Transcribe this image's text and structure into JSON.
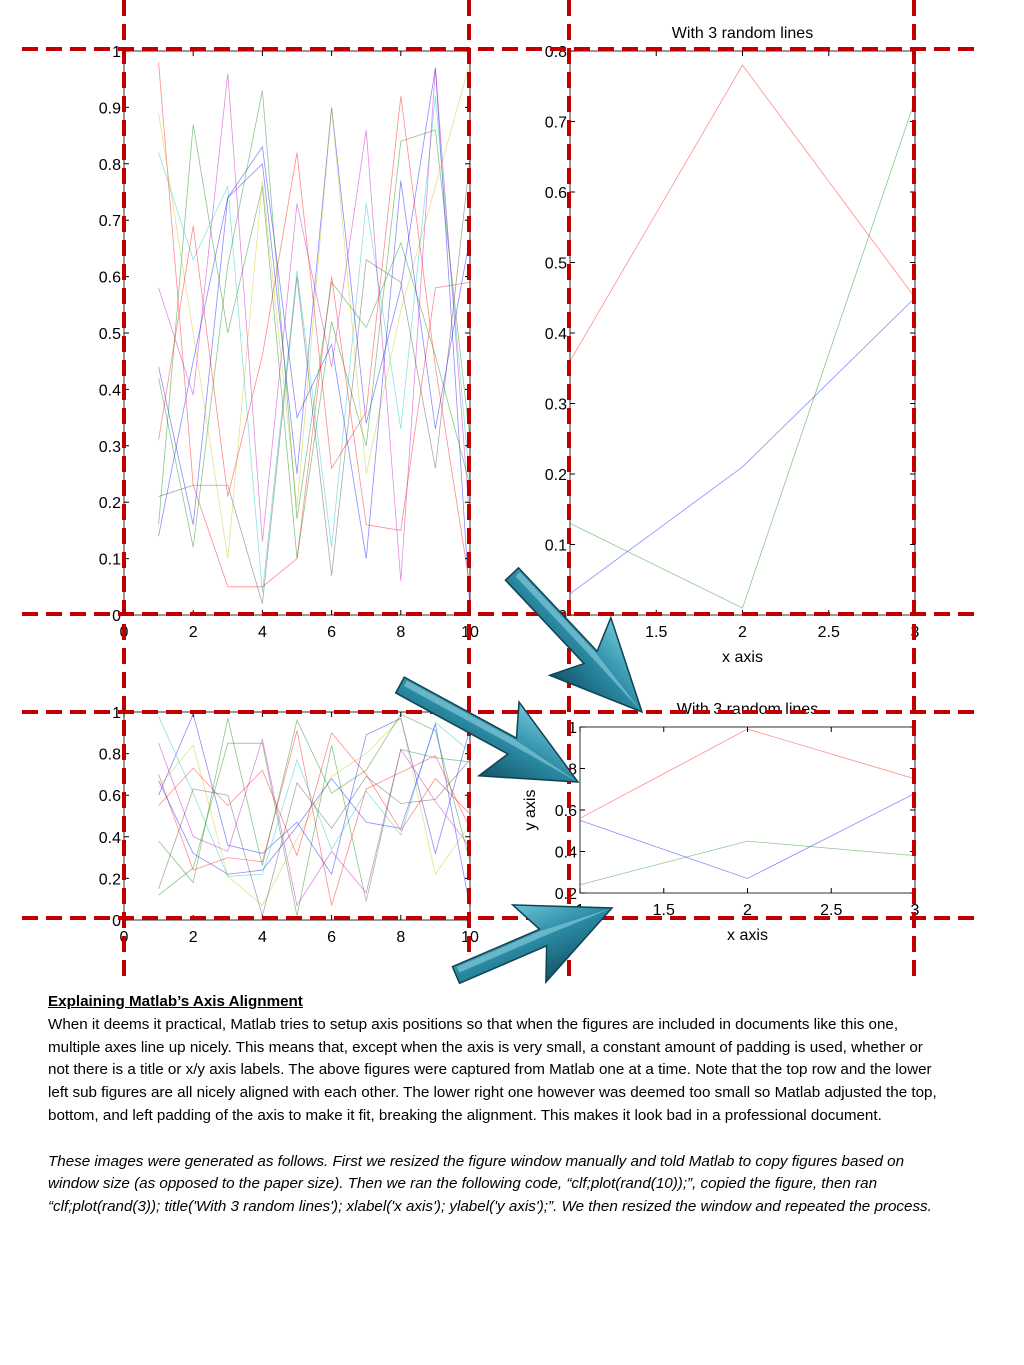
{
  "chart_data": [
    {
      "type": "line",
      "x": [
        1,
        2,
        3,
        4,
        5,
        6,
        7,
        8,
        9,
        10
      ],
      "xlim": [
        0,
        10
      ],
      "xticks": [
        0,
        2,
        4,
        6,
        8,
        10
      ],
      "ylim": [
        0,
        1
      ],
      "yticks": [
        0,
        0.1,
        0.2,
        0.3,
        0.4,
        0.5,
        0.6,
        0.7,
        0.8,
        0.9,
        1
      ],
      "series": [
        {
          "color": "#0000ff",
          "values": [
            0.44,
            0.16,
            0.74,
            0.8,
            0.25,
            0.9,
            0.34,
            0.58,
            0.97,
            0.01
          ]
        },
        {
          "color": "#008000",
          "values": [
            0.16,
            0.87,
            0.5,
            0.76,
            0.1,
            0.52,
            0.3,
            0.84,
            0.86,
            0.31
          ]
        },
        {
          "color": "#ff0000",
          "values": [
            0.98,
            0.23,
            0.05,
            0.05,
            0.1,
            0.6,
            0.16,
            0.15,
            0.58,
            0.59
          ]
        },
        {
          "color": "#00bfbf",
          "values": [
            0.82,
            0.63,
            0.76,
            0.04,
            0.61,
            0.12,
            0.73,
            0.33,
            0.92,
            0.23
          ]
        },
        {
          "color": "#bf00bf",
          "values": [
            0.58,
            0.39,
            0.96,
            0.13,
            0.73,
            0.44,
            0.86,
            0.06,
            0.97,
            0.16
          ]
        },
        {
          "color": "#bfbf00",
          "values": [
            0.89,
            0.5,
            0.1,
            0.77,
            0.19,
            0.9,
            0.25,
            0.54,
            0.76,
            0.98
          ]
        },
        {
          "color": "#404040",
          "values": [
            0.21,
            0.23,
            0.23,
            0.02,
            0.6,
            0.07,
            0.63,
            0.59,
            0.26,
            0.81
          ]
        },
        {
          "color": "#0000ff",
          "values": [
            0.14,
            0.45,
            0.74,
            0.83,
            0.35,
            0.48,
            0.1,
            0.77,
            0.33,
            0.67
          ]
        },
        {
          "color": "#008000",
          "values": [
            0.42,
            0.12,
            0.62,
            0.93,
            0.17,
            0.59,
            0.51,
            0.66,
            0.46,
            0.23
          ]
        },
        {
          "color": "#ff0000",
          "values": [
            0.31,
            0.69,
            0.21,
            0.46,
            0.82,
            0.26,
            0.36,
            0.92,
            0.44,
            0.05
          ]
        }
      ]
    },
    {
      "type": "line",
      "title": "With 3 random lines",
      "x_label": "x axis",
      "x": [
        1,
        2,
        3
      ],
      "xlim": [
        1,
        3
      ],
      "xticks": [
        1,
        1.5,
        2,
        2.5,
        3
      ],
      "ylim": [
        0,
        0.8
      ],
      "yticks": [
        0,
        0.1,
        0.2,
        0.3,
        0.4,
        0.5,
        0.6,
        0.7,
        0.8
      ],
      "series": [
        {
          "color": "#0000ff",
          "values": [
            0.03,
            0.21,
            0.45
          ]
        },
        {
          "color": "#008000",
          "values": [
            0.13,
            0.01,
            0.73
          ]
        },
        {
          "color": "#ff0000",
          "values": [
            0.36,
            0.78,
            0.45
          ]
        }
      ]
    },
    {
      "type": "line",
      "x": [
        1,
        2,
        3,
        4,
        5,
        6,
        7,
        8,
        9,
        10
      ],
      "xlim": [
        0,
        10
      ],
      "xticks": [
        0,
        2,
        4,
        6,
        8,
        10
      ],
      "ylim": [
        0,
        1
      ],
      "yticks": [
        0,
        0.2,
        0.4,
        0.6,
        0.8,
        1
      ],
      "series": [
        {
          "color": "#0000ff",
          "values": [
            0.6,
            0.99,
            0.36,
            0.32,
            0.47,
            0.22,
            0.89,
            0.97,
            0.32,
            0.92
          ]
        },
        {
          "color": "#008000",
          "values": [
            0.12,
            0.25,
            0.85,
            0.85,
            0.02,
            0.84,
            0.09,
            0.82,
            0.78,
            0.76
          ]
        },
        {
          "color": "#ff0000",
          "values": [
            0.7,
            0.24,
            0.3,
            0.28,
            0.91,
            0.07,
            0.63,
            0.71,
            0.79,
            0.44
          ]
        },
        {
          "color": "#00bfbf",
          "values": [
            0.98,
            0.61,
            0.21,
            0.22,
            0.77,
            0.34,
            0.62,
            0.41,
            0.95,
            0.81
          ]
        },
        {
          "color": "#bf00bf",
          "values": [
            0.85,
            0.4,
            0.33,
            0.87,
            0.07,
            0.33,
            0.13,
            0.82,
            0.57,
            0.35
          ]
        },
        {
          "color": "#bfbf00",
          "values": [
            0.64,
            0.84,
            0.21,
            0.07,
            0.39,
            0.69,
            0.8,
            0.97,
            0.22,
            0.46
          ]
        },
        {
          "color": "#404040",
          "values": [
            0.15,
            0.63,
            0.6,
            0.02,
            0.66,
            0.44,
            0.69,
            0.56,
            0.58,
            0.77
          ]
        },
        {
          "color": "#0000ff",
          "values": [
            0.67,
            0.32,
            0.22,
            0.24,
            0.45,
            0.68,
            0.47,
            0.44,
            0.94,
            0.06
          ]
        },
        {
          "color": "#008000",
          "values": [
            0.38,
            0.18,
            0.97,
            0.26,
            0.96,
            0.61,
            0.72,
            0.99,
            0.91,
            0.28
          ]
        },
        {
          "color": "#ff0000",
          "values": [
            0.55,
            0.73,
            0.55,
            0.72,
            0.31,
            0.9,
            0.7,
            0.43,
            0.68,
            0.51
          ]
        }
      ]
    },
    {
      "type": "line",
      "title": "With 3 random lines",
      "x_label": "x axis",
      "y_label": "y axis",
      "x": [
        1,
        2,
        3
      ],
      "xlim": [
        1,
        3
      ],
      "xticks": [
        1,
        1.5,
        2,
        2.5,
        3
      ],
      "ylim": [
        0.2,
        1
      ],
      "yticks": [
        0.2,
        0.4,
        0.6,
        0.8,
        1
      ],
      "series": [
        {
          "color": "#0000ff",
          "values": [
            0.55,
            0.27,
            0.68
          ]
        },
        {
          "color": "#008000",
          "values": [
            0.24,
            0.45,
            0.38
          ]
        },
        {
          "color": "#ff0000",
          "values": [
            0.56,
            0.99,
            0.75
          ]
        }
      ]
    }
  ],
  "document": {
    "heading": "Explaining Matlab’s Axis Alignment",
    "paragraphs": [
      "When it deems it practical, Matlab tries to setup axis positions so that when the figures are included in documents like this one, multiple axes line up nicely.  This means that, except when the axis is very small, a constant amount of padding is used, whether or not there is a title or x/y axis labels.  The above figures were captured from Matlab one at a time.  Note that the top row and the lower left sub figures are all nicely aligned with each other.  The lower right one however was deemed too small so Matlab adjusted the top, bottom, and left padding of the axis to make it  fit, breaking the alignment.  This makes it look bad in a professional document.",
      "These images were generated as follows.  First we resized the figure window manually and told Matlab to copy figures based on window size (as opposed to the paper size).  Then we ran the following code, “clf;plot(rand(10));”, copied the figure, then ran “clf;plot(rand(3)); title('With 3 random lines'); xlabel('x axis'); ylabel('y axis');”.  We then resized the window and repeated the process."
    ]
  }
}
